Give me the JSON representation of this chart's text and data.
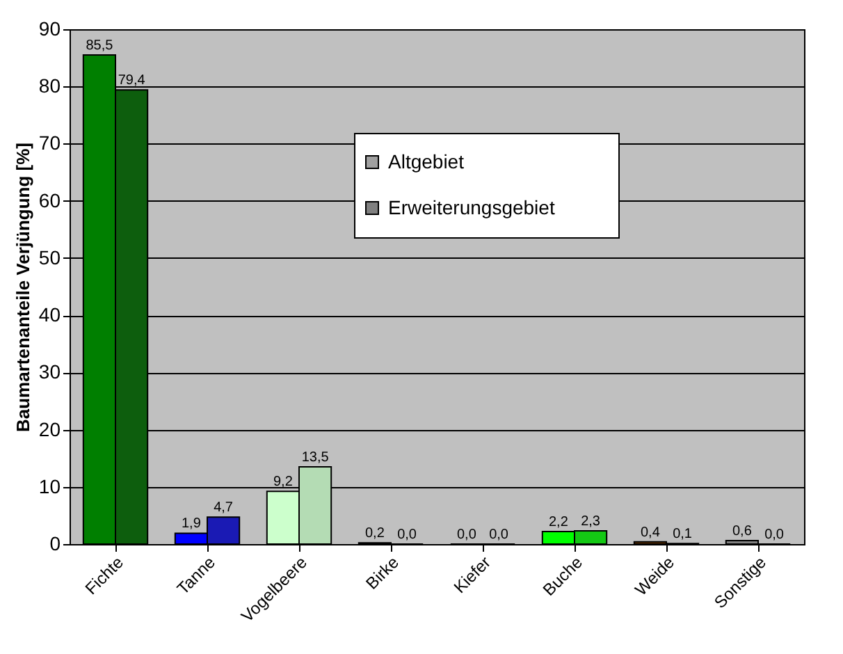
{
  "chart_data": {
    "type": "bar",
    "categories": [
      "Fichte",
      "Tanne",
      "Vogelbeere",
      "Birke",
      "Kiefer",
      "Buche",
      "Weide",
      "Sonstige"
    ],
    "series": [
      {
        "name": "Altgebiet",
        "color": "#a0a0a0",
        "colors": [
          "#007f00",
          "#0000ff",
          "#ccffcc",
          "#000000",
          "#000000",
          "#00ff00",
          "#663300",
          "#808080"
        ],
        "values": [
          85.5,
          1.9,
          9.2,
          0.2,
          0.0,
          2.2,
          0.4,
          0.6
        ],
        "value_labels": [
          "85,5",
          "1,9",
          "9,2",
          "0,2",
          "0,0",
          "2,2",
          "0,4",
          "0,6"
        ]
      },
      {
        "name": "Erweiterungsgebiet",
        "color": "#808080",
        "colors": [
          "#0d5e0d",
          "#1a1ab4",
          "#b4dcb4",
          "#000000",
          "#000000",
          "#14c814",
          "#4d2600",
          "#000000"
        ],
        "values": [
          79.4,
          4.7,
          13.5,
          0.0,
          0.0,
          2.3,
          0.1,
          0.0
        ],
        "value_labels": [
          "79,4",
          "4,7",
          "13,5",
          "0,0",
          "0,0",
          "2,3",
          "0,1",
          "0,0"
        ]
      }
    ],
    "ylabel": "Baumartenanteile Verjüngung [%]",
    "ylim": [
      0,
      90
    ],
    "yticks": [
      0,
      10,
      20,
      30,
      40,
      50,
      60,
      70,
      80,
      90
    ],
    "grid": "y",
    "legend": "top right"
  }
}
